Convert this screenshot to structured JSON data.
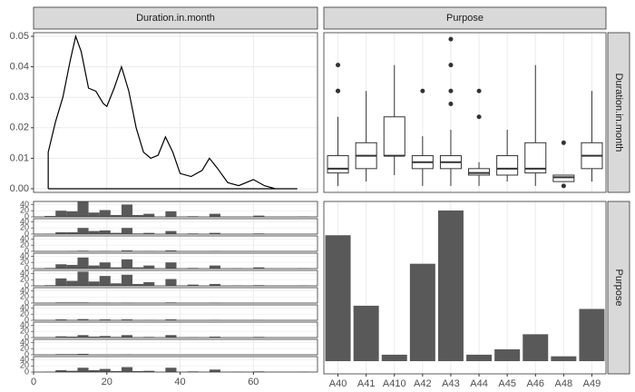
{
  "chart_data": [
    {
      "type": "line",
      "strip": "Duration.in.month",
      "x": [
        4,
        4,
        6,
        8,
        10,
        11.5,
        13,
        15,
        17,
        19,
        20,
        22,
        24,
        26,
        28,
        30,
        32,
        34,
        36,
        38,
        40,
        43,
        46,
        48,
        50,
        53,
        56,
        60,
        63,
        66,
        72,
        4
      ],
      "y": [
        0,
        0.012,
        0.022,
        0.03,
        0.042,
        0.05,
        0.045,
        0.033,
        0.032,
        0.028,
        0.027,
        0.033,
        0.04,
        0.032,
        0.02,
        0.012,
        0.01,
        0.011,
        0.017,
        0.012,
        0.005,
        0.004,
        0.006,
        0.01,
        0.007,
        0.002,
        0.001,
        0.003,
        0.001,
        0,
        0,
        0
      ],
      "xlim": [
        0,
        77.5
      ],
      "xticks": [
        0,
        20,
        40,
        60
      ],
      "ylim": [
        -0.0012,
        0.0512
      ],
      "yticks": [
        {
          "value": 0,
          "label": "0.00"
        },
        {
          "value": 0.01,
          "label": "0.01"
        },
        {
          "value": 0.02,
          "label": "0.02"
        },
        {
          "value": 0.03,
          "label": "0.03"
        },
        {
          "value": 0.04,
          "label": "0.04"
        },
        {
          "value": 0.05,
          "label": "0.05"
        }
      ],
      "color": "#000000",
      "grid": true
    },
    {
      "type": "box",
      "strip": "Purpose",
      "strip_right": "Duration.in.month",
      "categories": [
        "A40",
        "A41",
        "A410",
        "A42",
        "A43",
        "A44",
        "A45",
        "A46",
        "A48",
        "A49"
      ],
      "low": [
        4,
        6,
        9,
        4,
        4,
        4,
        6,
        4,
        6,
        6
      ],
      "q1": [
        10,
        12,
        18,
        12,
        12,
        9,
        9,
        10,
        6,
        12
      ],
      "median": [
        12,
        18,
        18,
        15,
        15,
        10,
        12,
        12,
        8,
        18
      ],
      "q3": [
        18,
        24,
        36,
        18,
        18,
        12,
        18,
        24,
        9,
        24
      ],
      "high": [
        36,
        48,
        60,
        27,
        30,
        15,
        30,
        60,
        9,
        48
      ],
      "outliers": [
        [
          48,
          48,
          60
        ],
        [],
        [],
        [
          48
        ],
        [
          42,
          48,
          60,
          72
        ],
        [
          36,
          48
        ],
        [],
        [],
        [
          24,
          4
        ],
        []
      ],
      "ylim": [
        1,
        75
      ],
      "color": "#333333"
    },
    {
      "type": "histogram",
      "bins": [
        3,
        6,
        9,
        12,
        15,
        18,
        21,
        24,
        27,
        30,
        33,
        36,
        39,
        42,
        45,
        48,
        51,
        54,
        57,
        60,
        63,
        66,
        69,
        72,
        75
      ],
      "panels": [
        [
          3,
          20,
          18,
          50,
          14,
          22,
          6,
          40,
          6,
          10,
          0,
          18,
          0,
          2,
          0,
          10,
          0,
          0,
          0,
          4,
          0,
          0,
          0,
          1
        ],
        [
          1,
          6,
          6,
          20,
          10,
          12,
          4,
          20,
          2,
          4,
          0,
          10,
          0,
          2,
          0,
          4,
          0,
          0,
          0,
          2,
          0,
          0,
          0,
          0
        ],
        [
          0,
          0,
          1,
          2,
          0,
          1,
          0,
          3,
          0,
          1,
          0,
          3,
          0,
          0,
          0,
          1,
          0,
          0,
          0,
          0,
          0,
          0,
          0,
          0
        ],
        [
          2,
          14,
          12,
          36,
          10,
          20,
          4,
          30,
          4,
          10,
          0,
          20,
          0,
          2,
          0,
          10,
          0,
          1,
          0,
          4,
          0,
          0,
          0,
          1
        ],
        [
          2,
          24,
          16,
          46,
          14,
          32,
          8,
          36,
          6,
          12,
          0,
          22,
          0,
          4,
          0,
          6,
          0,
          1,
          0,
          2,
          0,
          0,
          0,
          1
        ],
        [
          0,
          2,
          2,
          2,
          1,
          1,
          0,
          1,
          0,
          0,
          0,
          2,
          0,
          0,
          0,
          1,
          0,
          0,
          0,
          0,
          0,
          0,
          0,
          0
        ],
        [
          0,
          3,
          1,
          4,
          1,
          3,
          1,
          3,
          0,
          1,
          0,
          3,
          0,
          0,
          0,
          1,
          0,
          0,
          0,
          1,
          0,
          0,
          0,
          0
        ],
        [
          0,
          4,
          3,
          8,
          3,
          5,
          2,
          8,
          1,
          2,
          0,
          8,
          0,
          1,
          0,
          3,
          0,
          0,
          0,
          2,
          0,
          0,
          0,
          0
        ],
        [
          0,
          2,
          2,
          3,
          0,
          0,
          0,
          1,
          0,
          0,
          0,
          0,
          0,
          0,
          0,
          0,
          0,
          0,
          0,
          0,
          0,
          0,
          0,
          0
        ],
        [
          1,
          6,
          4,
          14,
          6,
          10,
          3,
          16,
          3,
          4,
          0,
          14,
          0,
          2,
          0,
          8,
          0,
          1,
          0,
          2,
          0,
          0,
          0,
          1
        ]
      ],
      "xlim": [
        0,
        77.5
      ],
      "xticks": [
        0,
        20,
        40,
        60
      ],
      "ylim": [
        0,
        50
      ],
      "yticks": [
        0,
        20,
        40
      ],
      "color": "#595959",
      "grid": true
    },
    {
      "type": "bar",
      "strip_right": "Purpose",
      "categories": [
        "A40",
        "A41",
        "A410",
        "A42",
        "A43",
        "A44",
        "A45",
        "A46",
        "A48",
        "A49"
      ],
      "values": [
        234,
        103,
        12,
        181,
        280,
        12,
        22,
        50,
        9,
        97
      ],
      "ylim": [
        -23.6,
        296.8
      ],
      "color": "#595959"
    }
  ]
}
